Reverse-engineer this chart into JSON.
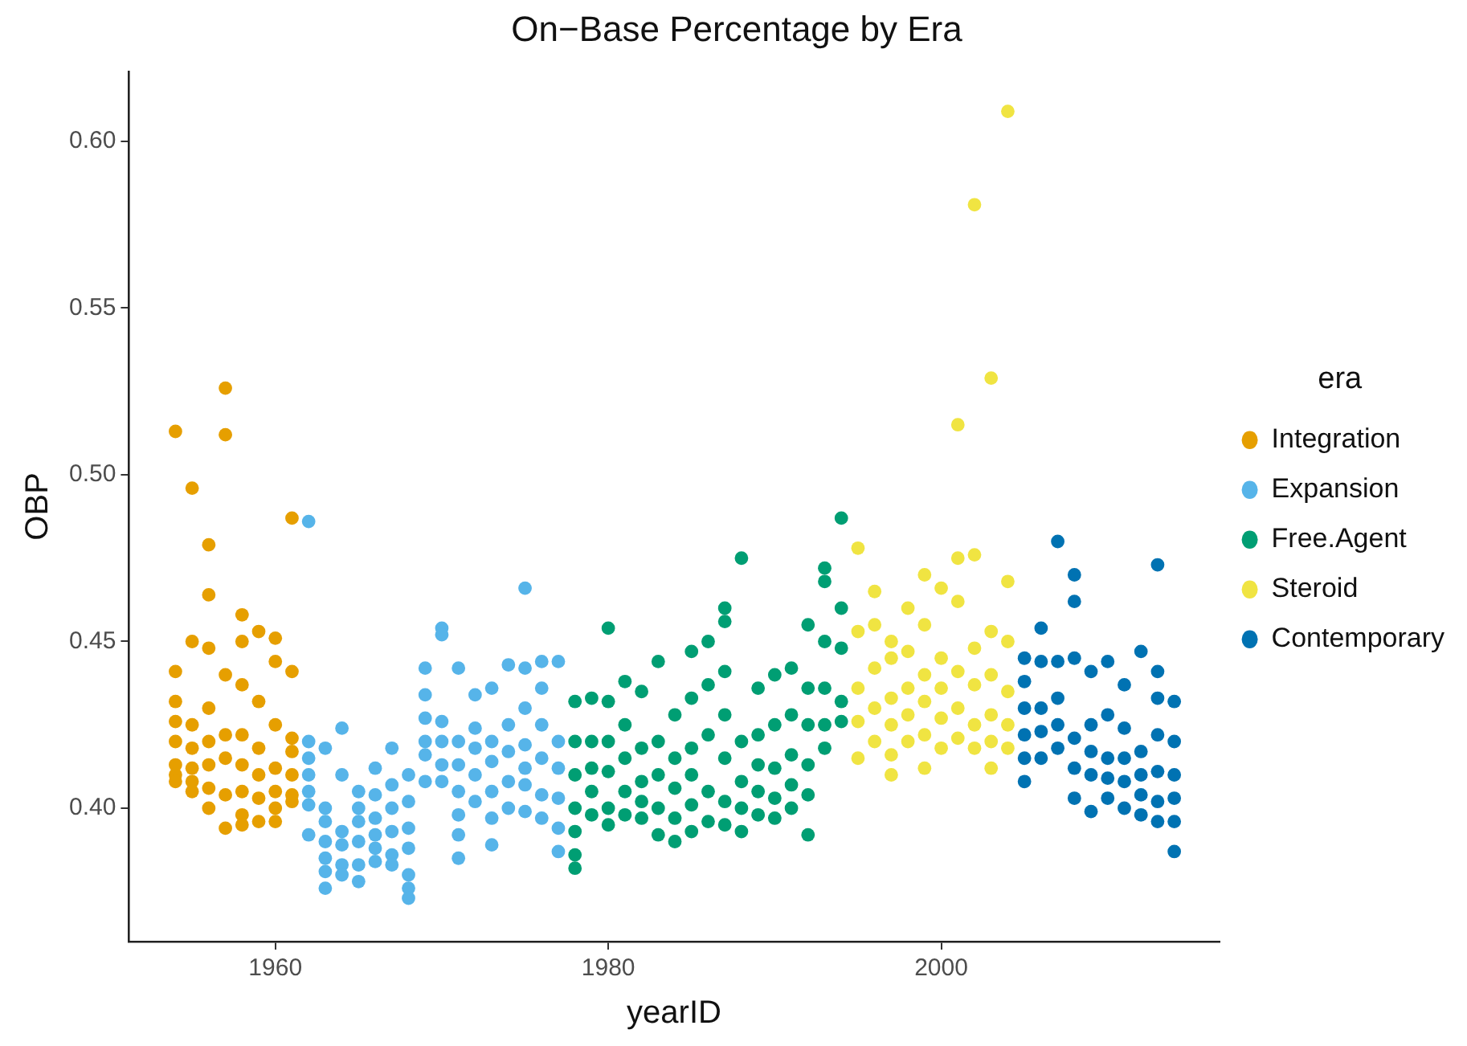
{
  "chart_data": {
    "type": "scatter",
    "title": "On−Base Percentage by Era",
    "xlabel": "yearID",
    "ylabel": "OBP",
    "legend_title": "era",
    "legend": "right",
    "grid": false,
    "marker": "circle",
    "xlim": [
      1951.2,
      2016.7
    ],
    "xticks": [
      1960,
      1980,
      2000
    ],
    "ylim": [
      0.36,
      0.621
    ],
    "yticks": [
      {
        "value": 0.4,
        "label": "0.40"
      },
      {
        "value": 0.45,
        "label": "0.45"
      },
      {
        "value": 0.5,
        "label": "0.50"
      },
      {
        "value": 0.55,
        "label": "0.55"
      },
      {
        "value": 0.6,
        "label": "0.60"
      }
    ],
    "series": [
      {
        "name": "Integration",
        "color": "#e69f00",
        "x": [
          1954,
          1954,
          1954,
          1954,
          1954,
          1954,
          1954,
          1954,
          1955,
          1955,
          1955,
          1955,
          1955,
          1955,
          1955,
          1956,
          1956,
          1956,
          1956,
          1956,
          1956,
          1956,
          1956,
          1957,
          1957,
          1957,
          1957,
          1957,
          1957,
          1957,
          1958,
          1958,
          1958,
          1958,
          1958,
          1958,
          1958,
          1958,
          1959,
          1959,
          1959,
          1959,
          1959,
          1959,
          1960,
          1960,
          1960,
          1960,
          1960,
          1960,
          1960,
          1961,
          1961,
          1961,
          1961,
          1961,
          1961,
          1961
        ],
        "values": [
          0.513,
          0.441,
          0.432,
          0.426,
          0.42,
          0.413,
          0.41,
          0.408,
          0.496,
          0.45,
          0.425,
          0.418,
          0.412,
          0.408,
          0.405,
          0.479,
          0.464,
          0.448,
          0.43,
          0.42,
          0.413,
          0.406,
          0.4,
          0.526,
          0.512,
          0.44,
          0.422,
          0.415,
          0.404,
          0.394,
          0.458,
          0.45,
          0.437,
          0.422,
          0.413,
          0.405,
          0.398,
          0.395,
          0.453,
          0.432,
          0.418,
          0.41,
          0.403,
          0.396,
          0.451,
          0.444,
          0.425,
          0.412,
          0.405,
          0.4,
          0.396,
          0.487,
          0.441,
          0.421,
          0.417,
          0.41,
          0.404,
          0.402
        ]
      },
      {
        "name": "Expansion",
        "color": "#56b4e9",
        "x": [
          1962,
          1962,
          1962,
          1962,
          1962,
          1962,
          1962,
          1963,
          1963,
          1963,
          1963,
          1963,
          1963,
          1963,
          1964,
          1964,
          1964,
          1964,
          1964,
          1964,
          1965,
          1965,
          1965,
          1965,
          1965,
          1965,
          1966,
          1966,
          1966,
          1966,
          1966,
          1966,
          1967,
          1967,
          1967,
          1967,
          1967,
          1967,
          1968,
          1968,
          1968,
          1968,
          1968,
          1968,
          1968,
          1969,
          1969,
          1969,
          1969,
          1969,
          1969,
          1970,
          1970,
          1970,
          1970,
          1970,
          1970,
          1971,
          1971,
          1971,
          1971,
          1971,
          1971,
          1971,
          1972,
          1972,
          1972,
          1972,
          1972,
          1973,
          1973,
          1973,
          1973,
          1973,
          1973,
          1974,
          1974,
          1974,
          1974,
          1974,
          1975,
          1975,
          1975,
          1975,
          1975,
          1975,
          1975,
          1976,
          1976,
          1976,
          1976,
          1976,
          1976,
          1977,
          1977,
          1977,
          1977,
          1977,
          1977
        ],
        "values": [
          0.486,
          0.42,
          0.415,
          0.41,
          0.405,
          0.401,
          0.392,
          0.418,
          0.4,
          0.396,
          0.39,
          0.385,
          0.381,
          0.376,
          0.424,
          0.41,
          0.393,
          0.389,
          0.383,
          0.38,
          0.405,
          0.4,
          0.396,
          0.39,
          0.383,
          0.378,
          0.412,
          0.404,
          0.397,
          0.392,
          0.388,
          0.384,
          0.418,
          0.407,
          0.4,
          0.393,
          0.386,
          0.383,
          0.41,
          0.402,
          0.394,
          0.388,
          0.38,
          0.376,
          0.373,
          0.442,
          0.434,
          0.427,
          0.42,
          0.416,
          0.408,
          0.454,
          0.452,
          0.426,
          0.42,
          0.413,
          0.408,
          0.442,
          0.42,
          0.413,
          0.405,
          0.398,
          0.392,
          0.385,
          0.434,
          0.424,
          0.418,
          0.41,
          0.402,
          0.436,
          0.42,
          0.414,
          0.405,
          0.397,
          0.389,
          0.443,
          0.425,
          0.417,
          0.408,
          0.4,
          0.466,
          0.442,
          0.43,
          0.419,
          0.412,
          0.407,
          0.399,
          0.444,
          0.436,
          0.425,
          0.415,
          0.404,
          0.397,
          0.444,
          0.42,
          0.412,
          0.403,
          0.394,
          0.387
        ]
      },
      {
        "name": "Free.Agent",
        "color": "#009e73",
        "x": [
          1978,
          1978,
          1978,
          1978,
          1978,
          1978,
          1978,
          1979,
          1979,
          1979,
          1979,
          1979,
          1980,
          1980,
          1980,
          1980,
          1980,
          1980,
          1981,
          1981,
          1981,
          1981,
          1981,
          1982,
          1982,
          1982,
          1982,
          1982,
          1983,
          1983,
          1983,
          1983,
          1983,
          1984,
          1984,
          1984,
          1984,
          1984,
          1985,
          1985,
          1985,
          1985,
          1985,
          1985,
          1986,
          1986,
          1986,
          1986,
          1986,
          1987,
          1987,
          1987,
          1987,
          1987,
          1987,
          1987,
          1988,
          1988,
          1988,
          1988,
          1988,
          1989,
          1989,
          1989,
          1989,
          1989,
          1990,
          1990,
          1990,
          1990,
          1990,
          1991,
          1991,
          1991,
          1991,
          1991,
          1992,
          1992,
          1992,
          1992,
          1992,
          1992,
          1993,
          1993,
          1993,
          1993,
          1993,
          1993,
          1994,
          1994,
          1994,
          1994,
          1994
        ],
        "values": [
          0.432,
          0.42,
          0.41,
          0.4,
          0.393,
          0.386,
          0.382,
          0.433,
          0.42,
          0.412,
          0.405,
          0.398,
          0.454,
          0.432,
          0.42,
          0.411,
          0.4,
          0.395,
          0.438,
          0.425,
          0.415,
          0.405,
          0.398,
          0.435,
          0.418,
          0.408,
          0.402,
          0.397,
          0.444,
          0.42,
          0.41,
          0.4,
          0.392,
          0.428,
          0.415,
          0.406,
          0.397,
          0.39,
          0.447,
          0.433,
          0.418,
          0.41,
          0.401,
          0.393,
          0.45,
          0.437,
          0.422,
          0.405,
          0.396,
          0.46,
          0.456,
          0.441,
          0.428,
          0.415,
          0.402,
          0.395,
          0.475,
          0.42,
          0.408,
          0.4,
          0.393,
          0.436,
          0.422,
          0.413,
          0.405,
          0.398,
          0.44,
          0.425,
          0.412,
          0.403,
          0.397,
          0.442,
          0.428,
          0.416,
          0.407,
          0.4,
          0.455,
          0.436,
          0.425,
          0.413,
          0.404,
          0.392,
          0.472,
          0.468,
          0.45,
          0.436,
          0.425,
          0.418,
          0.487,
          0.46,
          0.448,
          0.432,
          0.426
        ]
      },
      {
        "name": "Steroid",
        "color": "#f0e442",
        "x": [
          1995,
          1995,
          1995,
          1995,
          1995,
          1996,
          1996,
          1996,
          1996,
          1996,
          1997,
          1997,
          1997,
          1997,
          1997,
          1997,
          1998,
          1998,
          1998,
          1998,
          1998,
          1999,
          1999,
          1999,
          1999,
          1999,
          1999,
          2000,
          2000,
          2000,
          2000,
          2000,
          2001,
          2001,
          2001,
          2001,
          2001,
          2001,
          2002,
          2002,
          2002,
          2002,
          2002,
          2002,
          2003,
          2003,
          2003,
          2003,
          2003,
          2003,
          2004,
          2004,
          2004,
          2004,
          2004,
          2004
        ],
        "values": [
          0.478,
          0.453,
          0.436,
          0.426,
          0.415,
          0.465,
          0.455,
          0.442,
          0.43,
          0.42,
          0.45,
          0.445,
          0.433,
          0.425,
          0.416,
          0.41,
          0.46,
          0.447,
          0.436,
          0.428,
          0.42,
          0.47,
          0.455,
          0.44,
          0.432,
          0.422,
          0.412,
          0.466,
          0.445,
          0.436,
          0.427,
          0.418,
          0.515,
          0.475,
          0.462,
          0.441,
          0.43,
          0.421,
          0.581,
          0.476,
          0.448,
          0.437,
          0.425,
          0.418,
          0.529,
          0.453,
          0.44,
          0.428,
          0.42,
          0.412,
          0.609,
          0.468,
          0.45,
          0.435,
          0.425,
          0.418
        ]
      },
      {
        "name": "Contemporary",
        "color": "#0072b2",
        "x": [
          2005,
          2005,
          2005,
          2005,
          2005,
          2005,
          2006,
          2006,
          2006,
          2006,
          2006,
          2007,
          2007,
          2007,
          2007,
          2007,
          2008,
          2008,
          2008,
          2008,
          2008,
          2008,
          2009,
          2009,
          2009,
          2009,
          2009,
          2010,
          2010,
          2010,
          2010,
          2010,
          2011,
          2011,
          2011,
          2011,
          2011,
          2012,
          2012,
          2012,
          2012,
          2012,
          2013,
          2013,
          2013,
          2013,
          2013,
          2013,
          2013,
          2014,
          2014,
          2014,
          2014,
          2014,
          2014
        ],
        "values": [
          0.445,
          0.438,
          0.43,
          0.422,
          0.415,
          0.408,
          0.454,
          0.444,
          0.43,
          0.423,
          0.415,
          0.48,
          0.444,
          0.433,
          0.425,
          0.418,
          0.47,
          0.462,
          0.445,
          0.421,
          0.412,
          0.403,
          0.441,
          0.425,
          0.417,
          0.41,
          0.399,
          0.444,
          0.428,
          0.415,
          0.409,
          0.403,
          0.437,
          0.424,
          0.415,
          0.408,
          0.4,
          0.447,
          0.417,
          0.41,
          0.404,
          0.398,
          0.473,
          0.441,
          0.433,
          0.422,
          0.411,
          0.402,
          0.396,
          0.432,
          0.42,
          0.41,
          0.403,
          0.396,
          0.387
        ]
      }
    ]
  }
}
